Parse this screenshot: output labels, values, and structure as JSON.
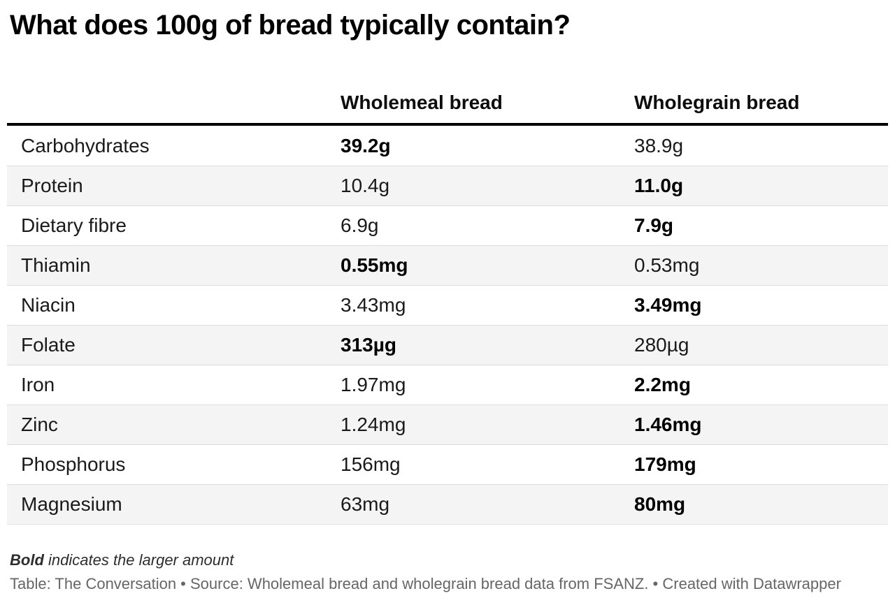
{
  "title": "What does 100g of bread typically contain?",
  "table": {
    "columns": [
      "",
      "Wholemeal bread",
      "Wholegrain bread"
    ],
    "rows": [
      {
        "label": "Carbohydrates",
        "wholemeal": "39.2g",
        "wholegrain": "38.9g",
        "bold": "wholemeal"
      },
      {
        "label": "Protein",
        "wholemeal": "10.4g",
        "wholegrain": "11.0g",
        "bold": "wholegrain"
      },
      {
        "label": "Dietary fibre",
        "wholemeal": "6.9g",
        "wholegrain": "7.9g",
        "bold": "wholegrain"
      },
      {
        "label": "Thiamin",
        "wholemeal": "0.55mg",
        "wholegrain": "0.53mg",
        "bold": "wholemeal"
      },
      {
        "label": "Niacin",
        "wholemeal": "3.43mg",
        "wholegrain": "3.49mg",
        "bold": "wholegrain"
      },
      {
        "label": "Folate",
        "wholemeal": "313µg",
        "wholegrain": "280µg",
        "bold": "wholemeal"
      },
      {
        "label": "Iron",
        "wholemeal": "1.97mg",
        "wholegrain": "2.2mg",
        "bold": "wholegrain"
      },
      {
        "label": "Zinc",
        "wholemeal": "1.24mg",
        "wholegrain": "1.46mg",
        "bold": "wholegrain"
      },
      {
        "label": "Phosphorus",
        "wholemeal": "156mg",
        "wholegrain": "179mg",
        "bold": "wholegrain"
      },
      {
        "label": "Magnesium",
        "wholemeal": "63mg",
        "wholegrain": "80mg",
        "bold": "wholegrain"
      }
    ]
  },
  "footer": {
    "note_bold": "Bold",
    "note_rest": " indicates the larger amount",
    "credits": "Table: The Conversation • Source: Wholemeal bread and wholegrain bread data from FSANZ. • Created with Datawrapper"
  },
  "colors": {
    "row_shade": "#f4f4f4",
    "header_rule": "#000000",
    "row_separator": "#dcdcdc",
    "credits_text": "#666666"
  },
  "chart_data": {
    "type": "table",
    "title": "What does 100g of bread typically contain?",
    "categories": [
      "Carbohydrates",
      "Protein",
      "Dietary fibre",
      "Thiamin",
      "Niacin",
      "Folate",
      "Iron",
      "Zinc",
      "Phosphorus",
      "Magnesium"
    ],
    "series": [
      {
        "name": "Wholemeal bread",
        "values": [
          "39.2g",
          "10.4g",
          "6.9g",
          "0.55mg",
          "3.43mg",
          "313µg",
          "1.97mg",
          "1.24mg",
          "156mg",
          "63mg"
        ]
      },
      {
        "name": "Wholegrain bread",
        "values": [
          "38.9g",
          "11.0g",
          "7.9g",
          "0.53mg",
          "3.49mg",
          "280µg",
          "2.2mg",
          "1.46mg",
          "179mg",
          "80mg"
        ]
      }
    ],
    "bold_marks_larger_amount": [
      "wholemeal",
      "wholegrain",
      "wholegrain",
      "wholemeal",
      "wholegrain",
      "wholemeal",
      "wholegrain",
      "wholegrain",
      "wholegrain",
      "wholegrain"
    ],
    "note": "Bold indicates the larger amount",
    "credit": "Table: The Conversation • Source: Wholemeal bread and wholegrain bread data from FSANZ. • Created with Datawrapper",
    "layout": {
      "striped_rows": true,
      "grid": "horizontal-separators",
      "header_rule": "thick-black"
    }
  }
}
